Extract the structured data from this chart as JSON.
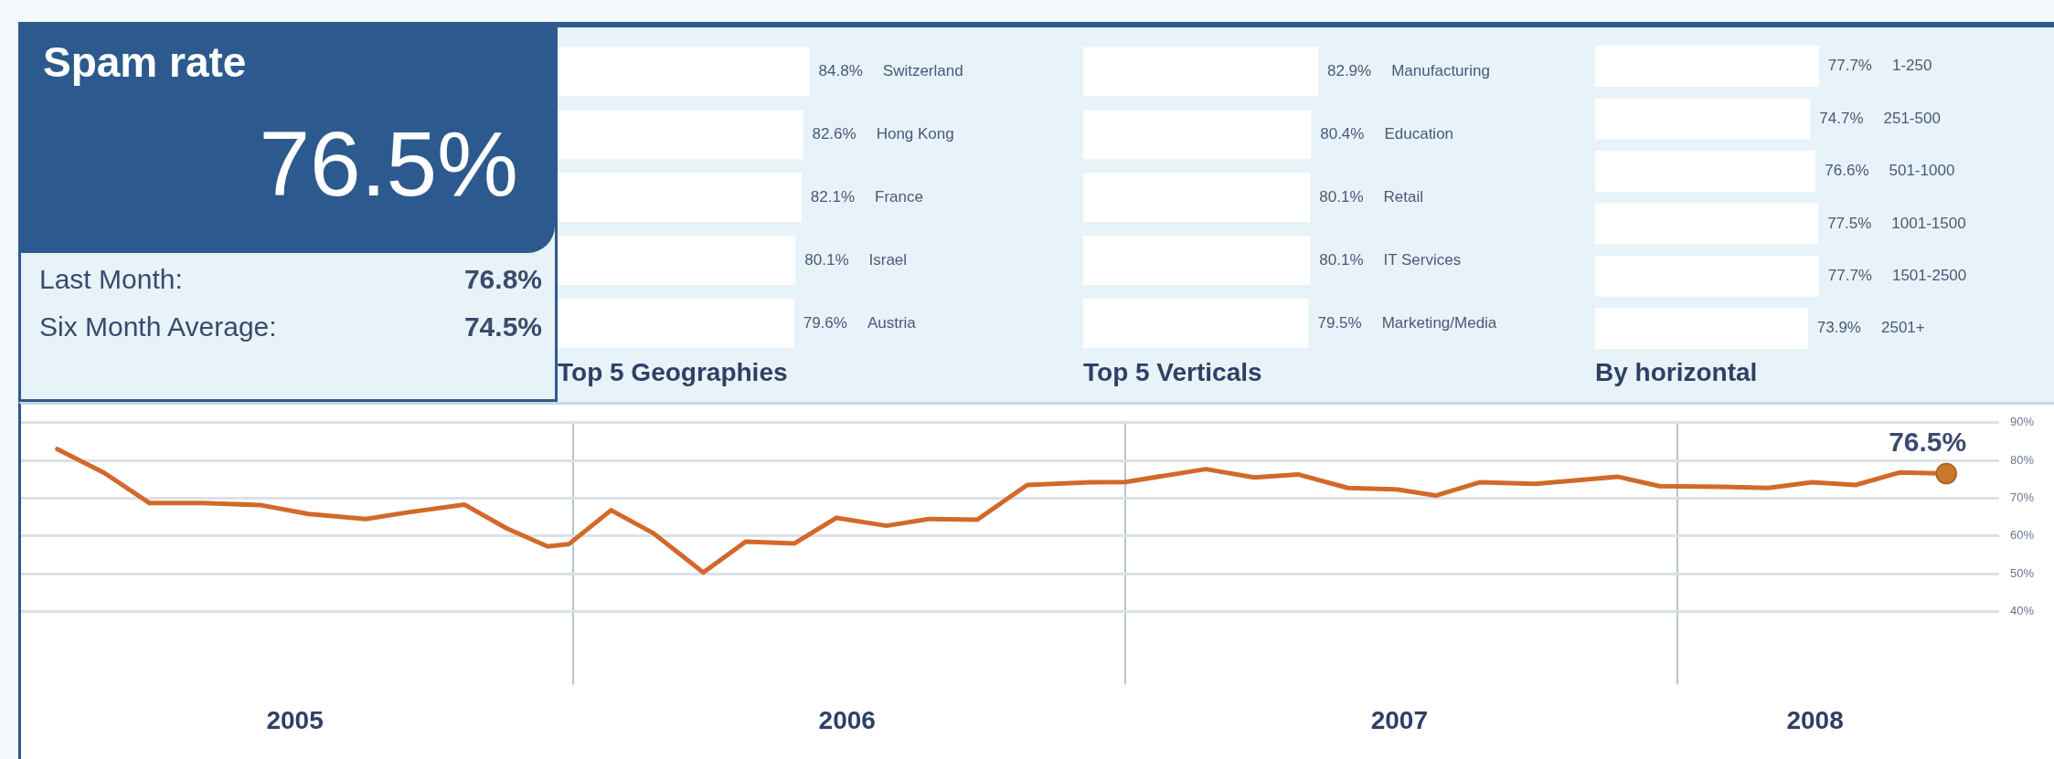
{
  "chart_data": [
    {
      "type": "other",
      "title": "Spam rate",
      "annotations": [
        "76.5%",
        "Last Month:",
        "76.8%",
        "Six Month Average:",
        "74.5%"
      ]
    },
    {
      "type": "bar",
      "orientation": "horizontal",
      "title": "Top 5 Geographies",
      "categories": [
        "Switzerland",
        "Hong Kong",
        "France",
        "Israel",
        "Austria"
      ],
      "values": [
        84.8,
        82.6,
        82.1,
        80.1,
        79.6
      ],
      "value_labels": [
        "84.8%",
        "82.6%",
        "82.1%",
        "80.1%",
        "79.6%"
      ],
      "color": "#ffffff",
      "tick_labels": false
    },
    {
      "type": "bar",
      "orientation": "horizontal",
      "title": "Top 5 Verticals",
      "categories": [
        "Manufacturing",
        "Education",
        "Retail",
        "IT Services",
        "Marketing/Media"
      ],
      "values": [
        82.9,
        80.4,
        80.1,
        80.1,
        79.5
      ],
      "value_labels": [
        "82.9%",
        "80.4%",
        "80.1%",
        "80.1%",
        "79.5%"
      ],
      "color": "#ffffff",
      "tick_labels": false
    },
    {
      "type": "bar",
      "orientation": "horizontal",
      "title": "By horizontal",
      "categories": [
        "1-250",
        "251-500",
        "501-1000",
        "1001-1500",
        "1501-2500",
        "2501+"
      ],
      "values": [
        77.7,
        74.7,
        76.6,
        77.5,
        77.7,
        73.9
      ],
      "value_labels": [
        "77.7%",
        "74.7%",
        "76.6%",
        "77.5%",
        "77.7%",
        "73.9%"
      ],
      "color": "#ffffff",
      "tick_labels": false
    },
    {
      "type": "line",
      "marker": "none",
      "grid": true,
      "xlim": [
        "2005-01",
        "2008-08"
      ],
      "ylim": [
        40,
        90
      ],
      "yticks": [
        {
          "value": 40,
          "label": "40%"
        },
        {
          "value": 50,
          "label": "50%"
        },
        {
          "value": 60,
          "label": "60%"
        },
        {
          "value": 70,
          "label": "70%"
        },
        {
          "value": 80,
          "label": "80%"
        },
        {
          "value": 90,
          "label": "90%"
        }
      ],
      "xticks": [
        {
          "value": "2005-07",
          "label": "2005"
        },
        {
          "value": "2006-01",
          "label": null
        },
        {
          "value": "2006-07",
          "label": "2006"
        },
        {
          "value": "2007-01",
          "label": null
        },
        {
          "value": "2007-07",
          "label": "2007"
        },
        {
          "value": "2008-01",
          "label": null
        },
        {
          "value": "2008-04",
          "label": "2008"
        }
      ],
      "annotations": [
        {
          "text": "76.5%",
          "x": "2008-06-27",
          "y": 76.5
        }
      ],
      "series": [
        {
          "color": "#d2692a",
          "x": [
            "2005-01-25",
            "2005-02-25",
            "2005-03-27",
            "2005-05-01",
            "2005-06-08",
            "2005-07-10",
            "2005-08-17",
            "2005-09-13",
            "2005-10-21",
            "2005-11-18",
            "2005-12-15",
            "2005-12-29",
            "2006-01-26",
            "2006-02-23",
            "2006-03-28",
            "2006-04-25",
            "2006-05-27",
            "2006-06-24",
            "2006-07-27",
            "2006-08-24",
            "2006-09-25",
            "2006-10-28",
            "2006-12-09",
            "2007-01-01",
            "2007-02-23",
            "2007-03-27",
            "2007-04-25",
            "2007-05-28",
            "2007-06-30",
            "2007-07-25",
            "2007-08-23",
            "2007-09-29",
            "2007-11-22",
            "2007-12-20",
            "2008-01-31",
            "2008-03-01",
            "2008-03-30",
            "2008-04-28",
            "2008-05-27",
            "2008-06-27"
          ],
          "values": [
            83.0,
            76.7,
            68.7,
            68.7,
            68.2,
            65.8,
            64.5,
            66.2,
            68.3,
            62.0,
            57.2,
            57.8,
            66.8,
            60.7,
            50.3,
            58.5,
            58.0,
            64.8,
            62.7,
            64.5,
            64.3,
            73.5,
            74.2,
            74.3,
            77.7,
            75.5,
            76.3,
            72.7,
            72.3,
            70.7,
            74.2,
            73.8,
            75.7,
            73.2,
            73.0,
            72.7,
            74.2,
            73.5,
            76.8,
            76.5
          ]
        }
      ]
    }
  ]
}
